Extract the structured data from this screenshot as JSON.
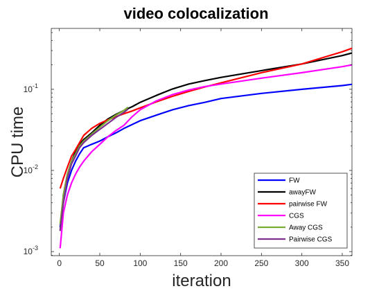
{
  "chart_data": {
    "type": "line",
    "title": "video colocalization",
    "xlabel": "iteration",
    "ylabel": "CPU time",
    "xlim": [
      -10,
      362
    ],
    "ylim_log10": [
      -3.05,
      -0.25
    ],
    "y_scale": "log",
    "x_ticks": [
      0,
      50,
      100,
      150,
      200,
      250,
      300,
      350
    ],
    "x_tick_labels": [
      "0",
      "50",
      "100",
      "150",
      "200",
      "250",
      "300",
      "350"
    ],
    "y_ticks": [
      0.001,
      0.01,
      0.1
    ],
    "y_tick_labels": [
      {
        "base": "10",
        "exp": "-3"
      },
      {
        "base": "10",
        "exp": "-2"
      },
      {
        "base": "10",
        "exp": "-1"
      }
    ],
    "grid": false,
    "legend_position": "bottom-right",
    "series": [
      {
        "name": "FW",
        "color": "#0000ff",
        "x": [
          1,
          5,
          10,
          15,
          20,
          25,
          30,
          40,
          50,
          60,
          70,
          80,
          100,
          120,
          140,
          160,
          180,
          200,
          250,
          300,
          350,
          362
        ],
        "y": [
          0.002,
          0.004,
          0.007,
          0.01,
          0.013,
          0.016,
          0.019,
          0.021,
          0.023,
          0.026,
          0.029,
          0.033,
          0.041,
          0.048,
          0.056,
          0.063,
          0.069,
          0.077,
          0.089,
          0.1,
          0.111,
          0.115
        ]
      },
      {
        "name": "awayFW",
        "color": "#000000",
        "x": [
          1,
          5,
          10,
          15,
          20,
          25,
          30,
          40,
          50,
          60,
          70,
          80,
          90,
          100,
          120,
          140,
          160,
          180,
          200,
          250,
          300,
          350,
          362
        ],
        "y": [
          0.0018,
          0.005,
          0.009,
          0.013,
          0.017,
          0.021,
          0.024,
          0.029,
          0.036,
          0.043,
          0.049,
          0.055,
          0.061,
          0.069,
          0.084,
          0.101,
          0.116,
          0.128,
          0.14,
          0.17,
          0.205,
          0.26,
          0.28
        ]
      },
      {
        "name": "pairwise FW",
        "color": "#ff0000",
        "x": [
          1,
          5,
          10,
          15,
          20,
          25,
          30,
          40,
          50,
          60,
          70,
          80,
          90,
          100,
          120,
          140,
          160,
          180,
          200,
          250,
          300,
          350,
          362
        ],
        "y": [
          0.006,
          0.008,
          0.011,
          0.015,
          0.018,
          0.022,
          0.027,
          0.033,
          0.038,
          0.042,
          0.046,
          0.05,
          0.054,
          0.059,
          0.07,
          0.082,
          0.094,
          0.107,
          0.12,
          0.16,
          0.205,
          0.29,
          0.32
        ]
      },
      {
        "name": "CGS",
        "color": "#ff00ff",
        "x": [
          1,
          5,
          10,
          15,
          20,
          25,
          30,
          40,
          50,
          60,
          70,
          80,
          90,
          100,
          120,
          140,
          160,
          180,
          200,
          250,
          300,
          350,
          362
        ],
        "y": [
          0.0011,
          0.003,
          0.005,
          0.007,
          0.009,
          0.011,
          0.013,
          0.017,
          0.021,
          0.026,
          0.031,
          0.036,
          0.046,
          0.056,
          0.072,
          0.086,
          0.098,
          0.108,
          0.116,
          0.137,
          0.16,
          0.19,
          0.2
        ]
      },
      {
        "name": "Away CGS",
        "color": "#77ac30",
        "x": [
          1,
          5,
          10,
          15,
          20,
          25,
          30,
          40,
          50,
          60,
          70,
          80,
          85
        ],
        "y": [
          0.0022,
          0.005,
          0.009,
          0.013,
          0.016,
          0.02,
          0.023,
          0.028,
          0.034,
          0.041,
          0.048,
          0.055,
          0.06
        ]
      },
      {
        "name": "Pairwise CGS",
        "color": "#7e2f8e",
        "x": [
          1,
          5,
          10,
          15,
          20,
          25,
          30,
          40,
          50,
          60,
          70,
          80,
          85
        ],
        "y": [
          0.0018,
          0.004,
          0.008,
          0.012,
          0.015,
          0.019,
          0.022,
          0.027,
          0.032,
          0.038,
          0.045,
          0.052,
          0.057
        ]
      }
    ]
  }
}
